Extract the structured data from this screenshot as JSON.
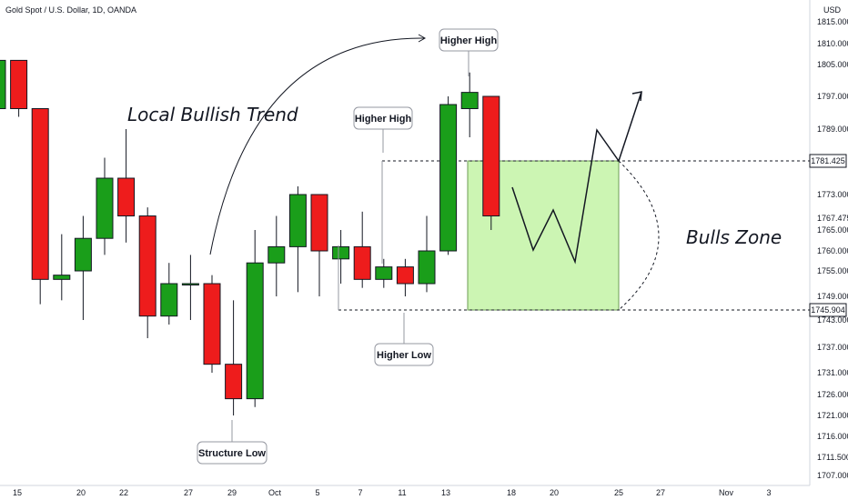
{
  "chart_data": {
    "type": "candlestick",
    "title": "Gold Spot / U.S. Dollar, 1D, OANDA",
    "currency": "USD",
    "x_ticks": [
      "15",
      "20",
      "22",
      "27",
      "29",
      "Oct",
      "5",
      "7",
      "11",
      "13",
      "18",
      "20",
      "25",
      "27",
      "Nov",
      "3"
    ],
    "y_ticks": [
      "1815.000",
      "1810.000",
      "1805.000",
      "1797.000",
      "1789.000",
      "1773.000",
      "1767.475",
      "1765.000",
      "1760.000",
      "1755.000",
      "1749.000",
      "1743.000",
      "1737.000",
      "1731.000",
      "1726.000",
      "1721.000",
      "1716.000",
      "1711.500",
      "1707.000"
    ],
    "candles": [
      {
        "open": 1794,
        "high": 1806,
        "low": 1792,
        "close": 1806
      },
      {
        "open": 1806,
        "high": 1806,
        "low": 1792,
        "close": 1794
      },
      {
        "open": 1794,
        "high": 1794,
        "low": 1747,
        "close": 1753
      },
      {
        "open": 1753,
        "high": 1764,
        "low": 1748,
        "close": 1754
      },
      {
        "open": 1755,
        "high": 1768,
        "low": 1743,
        "close": 1763
      },
      {
        "open": 1763,
        "high": 1782,
        "low": 1759,
        "close": 1777
      },
      {
        "open": 1777,
        "high": 1789,
        "low": 1762,
        "close": 1768
      },
      {
        "open": 1768,
        "high": 1770,
        "low": 1739,
        "close": 1744
      },
      {
        "open": 1744,
        "high": 1757,
        "low": 1742,
        "close": 1752
      },
      {
        "open": 1752,
        "high": 1759,
        "low": 1743,
        "close": 1752
      },
      {
        "open": 1752,
        "high": 1754,
        "low": 1731,
        "close": 1733
      },
      {
        "open": 1733,
        "high": 1748,
        "low": 1721,
        "close": 1725
      },
      {
        "open": 1725,
        "high": 1765,
        "low": 1723,
        "close": 1757
      },
      {
        "open": 1757,
        "high": 1768,
        "low": 1749,
        "close": 1761
      },
      {
        "open": 1761,
        "high": 1775,
        "low": 1750,
        "close": 1773
      },
      {
        "open": 1773,
        "high": 1773,
        "low": 1749,
        "close": 1760
      },
      {
        "open": 1758,
        "high": 1765,
        "low": 1752,
        "close": 1761
      },
      {
        "open": 1761,
        "high": 1769,
        "low": 1751,
        "close": 1753
      },
      {
        "open": 1753,
        "high": 1758,
        "low": 1751,
        "close": 1756
      },
      {
        "open": 1756,
        "high": 1758,
        "low": 1749,
        "close": 1752
      },
      {
        "open": 1752,
        "high": 1768,
        "low": 1750,
        "close": 1760
      },
      {
        "open": 1760,
        "high": 1797,
        "low": 1759,
        "close": 1795
      },
      {
        "open": 1794,
        "high": 1803,
        "low": 1787,
        "close": 1798
      },
      {
        "open": 1797,
        "high": 1797,
        "low": 1765,
        "close": 1768
      }
    ],
    "key_levels": [
      "1781.425",
      "1745.904"
    ],
    "annotations": [
      "Local Bullish Trend",
      "Higher High",
      "Higher High",
      "Higher Low",
      "Structure Low",
      "Bulls Zone"
    ],
    "colors": {
      "up": "#1a9e1a",
      "down": "#ee1c1c",
      "zone_fill": "#ccf5b3",
      "zone_stroke": "#6c9d55"
    }
  }
}
